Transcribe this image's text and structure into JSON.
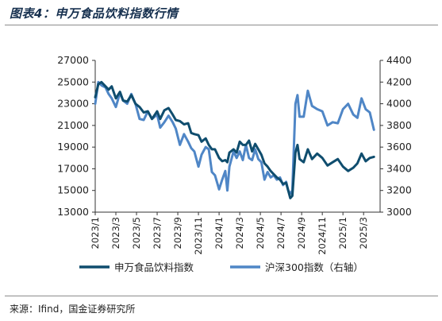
{
  "header": {
    "title": "图表4：申万食品饮料指数行情"
  },
  "footer": {
    "source": "来源：Ifind，国金证券研究所"
  },
  "colors": {
    "series1": "#0f4d6e",
    "series2": "#4f86c6"
  },
  "chart_data": {
    "type": "line",
    "title": "",
    "xlabel": "",
    "ylabel": "",
    "x_ticks": [
      "2023/1",
      "2023/3",
      "2023/5",
      "2023/7",
      "2023/9",
      "2023/11",
      "2024/1",
      "2024/3",
      "2024/5",
      "2024/7",
      "2024/9",
      "2024/11",
      "2025/1",
      "2025/3"
    ],
    "x_range": [
      0,
      27.6
    ],
    "y_left": {
      "min": 13000,
      "max": 27000,
      "step": 2000,
      "ticks": [
        "13000",
        "15000",
        "17000",
        "19000",
        "21000",
        "23000",
        "25000",
        "27000"
      ]
    },
    "y_right": {
      "min": 3000,
      "max": 4400,
      "step": 200,
      "ticks": [
        "3000",
        "3200",
        "3400",
        "3600",
        "3800",
        "4000",
        "4200",
        "4400"
      ]
    },
    "legend_position": "bottom",
    "grid": false,
    "series": [
      {
        "name": "申万食品饮料指数",
        "axis": "left",
        "color": "#0f4d6e",
        "points": [
          [
            0,
            23600
          ],
          [
            0.3,
            24800
          ],
          [
            0.6,
            25000
          ],
          [
            1.0,
            24600
          ],
          [
            1.3,
            24300
          ],
          [
            1.6,
            24600
          ],
          [
            2.0,
            23500
          ],
          [
            2.4,
            24100
          ],
          [
            2.7,
            23300
          ],
          [
            3.1,
            23200
          ],
          [
            3.5,
            23800
          ],
          [
            3.9,
            23000
          ],
          [
            4.3,
            22700
          ],
          [
            4.7,
            22200
          ],
          [
            5.1,
            22300
          ],
          [
            5.5,
            21600
          ],
          [
            6.0,
            22300
          ],
          [
            6.3,
            21600
          ],
          [
            6.7,
            22400
          ],
          [
            7.1,
            22600
          ],
          [
            7.5,
            22000
          ],
          [
            7.8,
            21500
          ],
          [
            8.2,
            21400
          ],
          [
            8.6,
            21100
          ],
          [
            9.0,
            21200
          ],
          [
            9.3,
            20300
          ],
          [
            9.6,
            20200
          ],
          [
            10.0,
            20100
          ],
          [
            10.3,
            19500
          ],
          [
            10.7,
            19800
          ],
          [
            11.0,
            19200
          ],
          [
            11.3,
            18800
          ],
          [
            11.6,
            18800
          ],
          [
            12.0,
            18000
          ],
          [
            12.3,
            17700
          ],
          [
            12.6,
            17800
          ],
          [
            12.8,
            17600
          ],
          [
            13.0,
            18500
          ],
          [
            13.4,
            18800
          ],
          [
            13.7,
            18500
          ],
          [
            14.0,
            19500
          ],
          [
            14.3,
            19200
          ],
          [
            14.6,
            19200
          ],
          [
            14.9,
            19600
          ],
          [
            15.2,
            18600
          ],
          [
            15.5,
            19300
          ],
          [
            15.8,
            18800
          ],
          [
            16.1,
            18300
          ],
          [
            16.4,
            17500
          ],
          [
            16.7,
            17200
          ],
          [
            17.0,
            16800
          ],
          [
            17.3,
            16500
          ],
          [
            17.6,
            16200
          ],
          [
            17.9,
            16000
          ],
          [
            18.2,
            15600
          ],
          [
            18.5,
            15700
          ],
          [
            18.7,
            15000
          ],
          [
            18.9,
            14300
          ],
          [
            19.1,
            14500
          ],
          [
            19.4,
            18500
          ],
          [
            19.6,
            19200
          ],
          [
            19.8,
            17900
          ],
          [
            20.2,
            17600
          ],
          [
            20.6,
            18800
          ],
          [
            21.0,
            17900
          ],
          [
            21.5,
            18400
          ],
          [
            22.0,
            18000
          ],
          [
            22.5,
            17300
          ],
          [
            23.0,
            17600
          ],
          [
            23.5,
            17900
          ],
          [
            24.0,
            17200
          ],
          [
            24.5,
            16800
          ],
          [
            25.0,
            17100
          ],
          [
            25.4,
            17500
          ],
          [
            25.8,
            18400
          ],
          [
            26.2,
            17700
          ],
          [
            26.6,
            18000
          ],
          [
            27.0,
            18100
          ]
        ]
      },
      {
        "name": "沪深300指数（右轴）",
        "axis": "right",
        "color": "#4f86c6",
        "points": [
          [
            0,
            4000
          ],
          [
            0.3,
            4200
          ],
          [
            0.6,
            4170
          ],
          [
            1.0,
            4150
          ],
          [
            1.3,
            4090
          ],
          [
            1.6,
            4050
          ],
          [
            2.0,
            3970
          ],
          [
            2.4,
            4100
          ],
          [
            2.7,
            4030
          ],
          [
            3.1,
            4000
          ],
          [
            3.5,
            4090
          ],
          [
            3.9,
            4000
          ],
          [
            4.3,
            3860
          ],
          [
            4.7,
            3850
          ],
          [
            5.1,
            3930
          ],
          [
            5.5,
            3860
          ],
          [
            6.0,
            3900
          ],
          [
            6.3,
            3780
          ],
          [
            6.7,
            3830
          ],
          [
            7.1,
            3890
          ],
          [
            7.5,
            3830
          ],
          [
            7.8,
            3770
          ],
          [
            8.2,
            3620
          ],
          [
            8.6,
            3720
          ],
          [
            9.0,
            3650
          ],
          [
            9.3,
            3590
          ],
          [
            9.6,
            3560
          ],
          [
            10.0,
            3420
          ],
          [
            10.3,
            3530
          ],
          [
            10.7,
            3600
          ],
          [
            11.0,
            3580
          ],
          [
            11.3,
            3370
          ],
          [
            11.6,
            3340
          ],
          [
            12.0,
            3210
          ],
          [
            12.3,
            3300
          ],
          [
            12.6,
            3380
          ],
          [
            12.8,
            3200
          ],
          [
            13.0,
            3420
          ],
          [
            13.4,
            3560
          ],
          [
            13.7,
            3500
          ],
          [
            14.0,
            3560
          ],
          [
            14.3,
            3480
          ],
          [
            14.6,
            3620
          ],
          [
            14.9,
            3500
          ],
          [
            15.2,
            3480
          ],
          [
            15.5,
            3580
          ],
          [
            15.8,
            3490
          ],
          [
            16.1,
            3460
          ],
          [
            16.4,
            3300
          ],
          [
            16.7,
            3370
          ],
          [
            17.0,
            3320
          ],
          [
            17.3,
            3340
          ],
          [
            17.6,
            3300
          ],
          [
            17.9,
            3320
          ],
          [
            18.2,
            3250
          ],
          [
            18.5,
            3280
          ],
          [
            18.7,
            3200
          ],
          [
            18.9,
            3170
          ],
          [
            19.1,
            3200
          ],
          [
            19.4,
            4000
          ],
          [
            19.6,
            4080
          ],
          [
            19.8,
            3880
          ],
          [
            20.2,
            3880
          ],
          [
            20.6,
            4120
          ],
          [
            21.0,
            3980
          ],
          [
            21.5,
            3950
          ],
          [
            22.0,
            3930
          ],
          [
            22.5,
            3800
          ],
          [
            23.0,
            3830
          ],
          [
            23.5,
            3820
          ],
          [
            24.0,
            3950
          ],
          [
            24.5,
            4000
          ],
          [
            25.0,
            3900
          ],
          [
            25.4,
            3870
          ],
          [
            25.8,
            4050
          ],
          [
            26.2,
            3950
          ],
          [
            26.6,
            3920
          ],
          [
            27.0,
            3760
          ]
        ]
      }
    ]
  }
}
